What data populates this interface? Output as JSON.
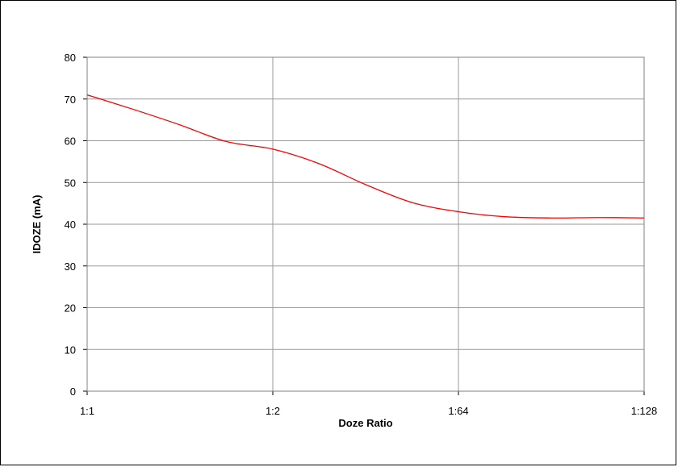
{
  "chart_data": {
    "type": "line",
    "title": "",
    "xlabel": "Doze Ratio",
    "ylabel": "IDOZE (mA)",
    "categories": [
      "1:1",
      "1:2",
      "1:64",
      "1:128"
    ],
    "x": [
      0,
      0.25,
      0.5,
      0.75,
      1,
      1.25,
      1.5,
      1.75,
      2,
      2.25,
      2.5,
      2.75,
      3
    ],
    "series": [
      {
        "values": [
          71,
          67.5,
          63.8,
          59.8,
          58,
          54.5,
          49.5,
          45.2,
          43,
          41.8,
          41.5,
          41.6,
          41.5
        ],
        "color": "#ff0000"
      }
    ],
    "ylim": [
      0,
      80
    ],
    "yticks": [
      0,
      10,
      20,
      30,
      40,
      50,
      60,
      70,
      80
    ],
    "grid": true,
    "legend": "none"
  }
}
